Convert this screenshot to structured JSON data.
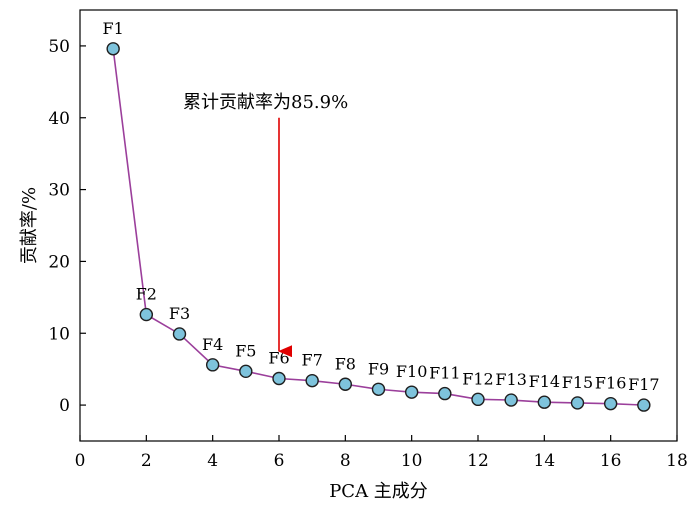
{
  "chart_data": {
    "type": "line",
    "xlabel": "PCA 主成分",
    "ylabel": "贡献率/%",
    "xlim": [
      0,
      18
    ],
    "ylim": [
      -5,
      55
    ],
    "x_ticks": [
      0,
      2,
      4,
      6,
      8,
      10,
      12,
      14,
      16,
      18
    ],
    "y_ticks": [
      0,
      10,
      20,
      30,
      40,
      50
    ],
    "grid": false,
    "series": [
      {
        "x": [
          1,
          2,
          3,
          4,
          5,
          6,
          7,
          8,
          9,
          10,
          11,
          12,
          13,
          14,
          15,
          16,
          17
        ],
        "values": [
          49.6,
          12.6,
          9.9,
          5.6,
          4.7,
          3.7,
          3.4,
          2.9,
          2.2,
          1.8,
          1.6,
          0.8,
          0.7,
          0.4,
          0.3,
          0.2,
          0.0
        ],
        "labels": [
          "F1",
          "F2",
          "F3",
          "F4",
          "F5",
          "F6",
          "F7",
          "F8",
          "F9",
          "F10",
          "F11",
          "F12",
          "F13",
          "F14",
          "F15",
          "F16",
          "F17"
        ]
      }
    ],
    "annotation": {
      "text": "累计贡献率为85.9%",
      "arrow_x": 6,
      "arrow_y_from": 40,
      "arrow_y_to": 7.5
    },
    "colors": {
      "line": "#9b3f9b",
      "marker_fill": "#7ec3dc",
      "marker_edge": "#1f1f1f",
      "arrow": "#e00000"
    }
  }
}
